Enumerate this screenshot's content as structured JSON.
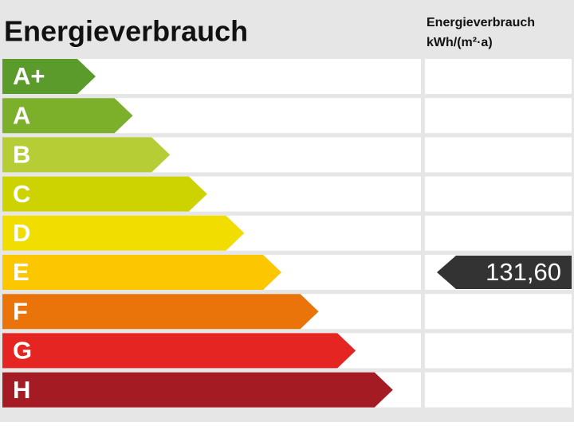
{
  "header": {
    "title": "Energieverbrauch",
    "unit_title": "Energieverbrauch",
    "unit": "kWh/(m²·a)"
  },
  "classes": [
    {
      "label": "A+",
      "color": "#5a9b2b"
    },
    {
      "label": "A",
      "color": "#7cb02a"
    },
    {
      "label": "B",
      "color": "#b6cd36"
    },
    {
      "label": "C",
      "color": "#ccd300"
    },
    {
      "label": "D",
      "color": "#f1dd00"
    },
    {
      "label": "E",
      "color": "#fdc700",
      "value": "131,60"
    },
    {
      "label": "F",
      "color": "#ea7409"
    },
    {
      "label": "G",
      "color": "#e42521"
    },
    {
      "label": "H",
      "color": "#a41b24"
    }
  ]
}
